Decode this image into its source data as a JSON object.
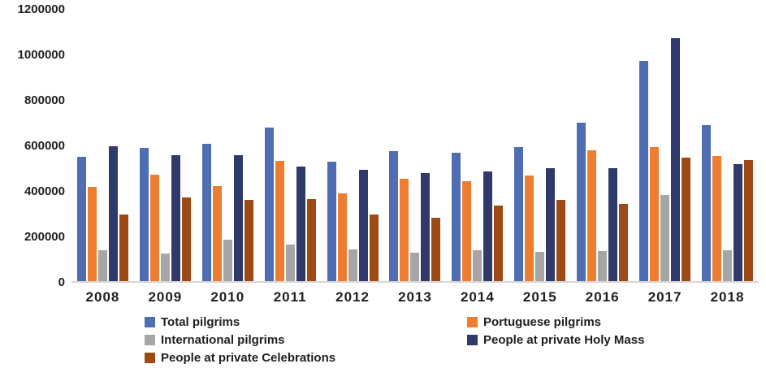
{
  "chart_data": {
    "type": "bar",
    "categories": [
      "2008",
      "2009",
      "2010",
      "2011",
      "2012",
      "2013",
      "2014",
      "2015",
      "2016",
      "2017",
      "2018"
    ],
    "series": [
      {
        "name": "Total pilgrims",
        "color": "#4F6DB3",
        "values": [
          548000,
          586000,
          602000,
          674000,
          526000,
          572000,
          564000,
          590000,
          695000,
          969000,
          686000
        ]
      },
      {
        "name": "Portuguese pilgrims",
        "color": "#ED7D31",
        "values": [
          414000,
          469000,
          419000,
          529000,
          386000,
          449000,
          439000,
          465000,
          574000,
          588000,
          550000
        ]
      },
      {
        "name": "International pilgrims",
        "color": "#A6A6A6",
        "values": [
          137000,
          121000,
          183000,
          162000,
          139000,
          126000,
          136000,
          127000,
          132000,
          378000,
          136000
        ]
      },
      {
        "name": "People at private Holy Mass",
        "color": "#2F3A6B",
        "values": [
          592000,
          555000,
          555000,
          505000,
          489000,
          475000,
          481000,
          496000,
          496000,
          1067000,
          513000
        ]
      },
      {
        "name": "People at private Celebrations",
        "color": "#9E4A15",
        "values": [
          292000,
          368000,
          356000,
          362000,
          293000,
          280000,
          332000,
          356000,
          340000,
          543000,
          532000
        ]
      }
    ],
    "ylim": [
      0,
      1200000
    ],
    "ytick_step": 200000,
    "yticks": [
      "1200000",
      "1000000",
      "800000",
      "600000",
      "400000",
      "200000",
      "0"
    ],
    "grid": false,
    "legend_position": "bottom",
    "legend_rows": [
      [
        0,
        1
      ],
      [
        2,
        3
      ],
      [
        4
      ]
    ]
  },
  "axis": {
    "line_color": "#d8d5d5"
  }
}
